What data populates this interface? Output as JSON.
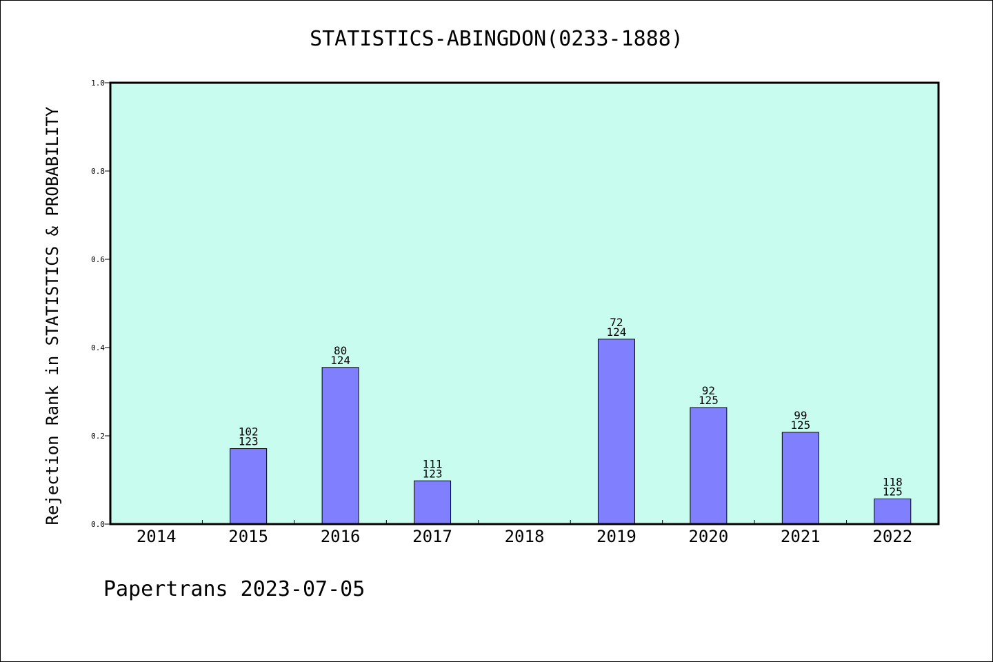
{
  "chart_data": {
    "type": "bar",
    "title": "STATISTICS-ABINGDON(0233-1888)",
    "ylabel": "Rejection Rank in STATISTICS & PROBABILITY",
    "xlabel": "",
    "categories": [
      "2014",
      "2015",
      "2016",
      "2017",
      "2018",
      "2019",
      "2020",
      "2021",
      "2022"
    ],
    "values": [
      null,
      0.171,
      0.355,
      0.098,
      null,
      0.419,
      0.264,
      0.208,
      0.057
    ],
    "ranks": [
      null,
      "102",
      "80",
      "111",
      null,
      "72",
      "92",
      "99",
      "118"
    ],
    "totals": [
      null,
      "123",
      "124",
      "123",
      null,
      "124",
      "125",
      "125",
      "125"
    ],
    "ylim": [
      0,
      1.0
    ],
    "yticks": [
      "0.0",
      "0.2",
      "0.4",
      "0.6",
      "0.8",
      "1.0"
    ],
    "grid": false,
    "colors": {
      "plot_background": "#c8fcee",
      "bar": "#8080ff"
    }
  },
  "footer": "Papertrans 2023-07-05"
}
